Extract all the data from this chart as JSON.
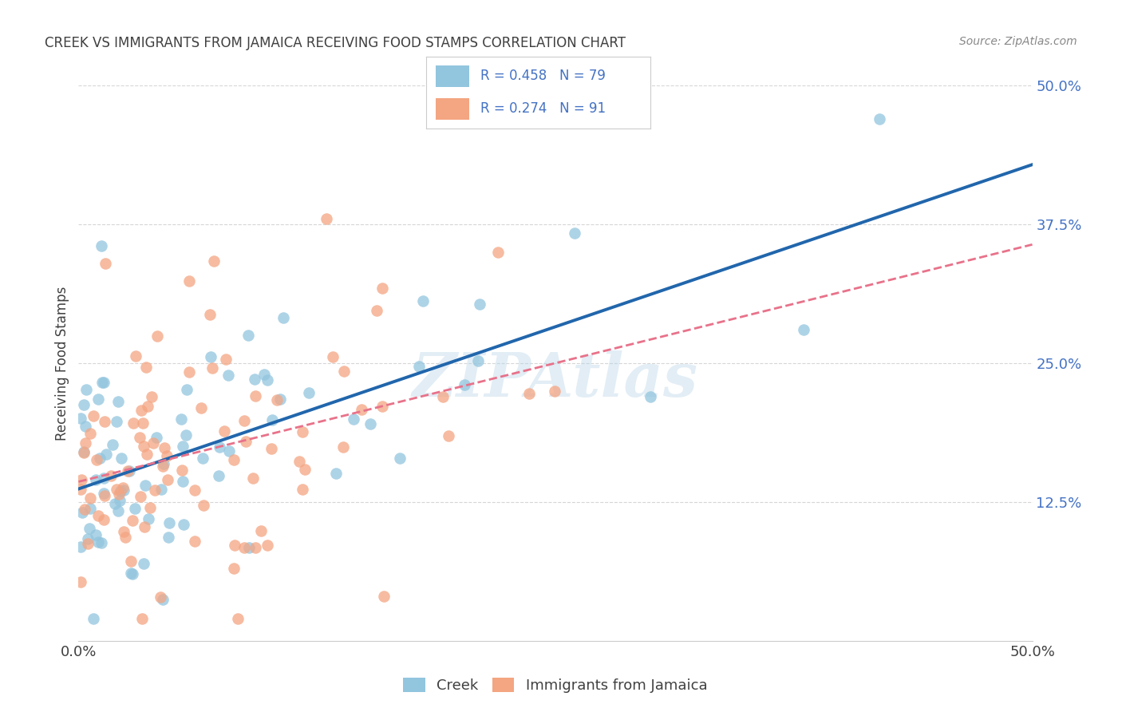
{
  "title": "CREEK VS IMMIGRANTS FROM JAMAICA RECEIVING FOOD STAMPS CORRELATION CHART",
  "source": "Source: ZipAtlas.com",
  "ylabel": "Receiving Food Stamps",
  "xlim": [
    0.0,
    0.5
  ],
  "ylim": [
    0.0,
    0.5
  ],
  "creek_color": "#92c5de",
  "jamaica_color": "#f4a582",
  "creek_line_color": "#2166ac",
  "jamaica_line_color": "#e8728a",
  "creek_R": 0.458,
  "creek_N": 79,
  "jamaica_R": 0.274,
  "jamaica_N": 91,
  "watermark": "ZIPAtlas",
  "background_color": "#ffffff",
  "grid_color": "#cccccc",
  "right_tick_color": "#4472c4",
  "title_color": "#404040",
  "source_color": "#888888",
  "label_color": "#404040"
}
